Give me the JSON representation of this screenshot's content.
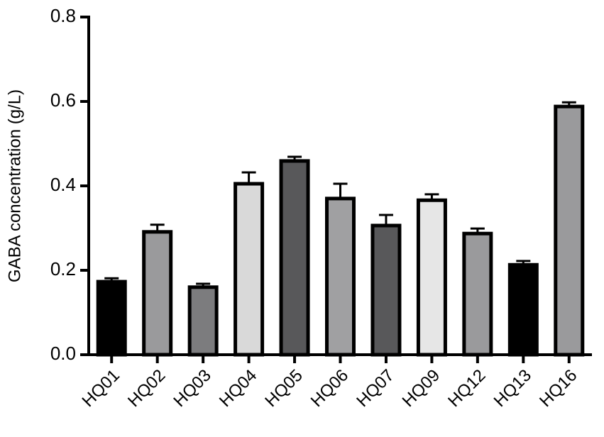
{
  "chart_data": {
    "type": "bar",
    "ylabel": "GABA concentration (g/L)",
    "categories": [
      "HQ01",
      "HQ02",
      "HQ03",
      "HQ04",
      "HQ05",
      "HQ06",
      "HQ07",
      "HQ09",
      "HQ12",
      "HQ13",
      "HQ16"
    ],
    "values": [
      0.173,
      0.291,
      0.16,
      0.405,
      0.459,
      0.37,
      0.306,
      0.366,
      0.287,
      0.213,
      0.588
    ],
    "errors": [
      0.008,
      0.017,
      0.008,
      0.027,
      0.01,
      0.035,
      0.025,
      0.014,
      0.012,
      0.009,
      0.01
    ],
    "colors": [
      "#000000",
      "#9a9a9c",
      "#7c7c7e",
      "#d9d9d9",
      "#58585a",
      "#a0a0a2",
      "#58585a",
      "#e6e6e6",
      "#9a9a9c",
      "#000000",
      "#9a9a9c"
    ],
    "ylim": [
      0,
      0.8
    ],
    "yticks": [
      {
        "value": 0,
        "label": "0.0"
      },
      0.2,
      0.4,
      0.6,
      0.8
    ]
  }
}
